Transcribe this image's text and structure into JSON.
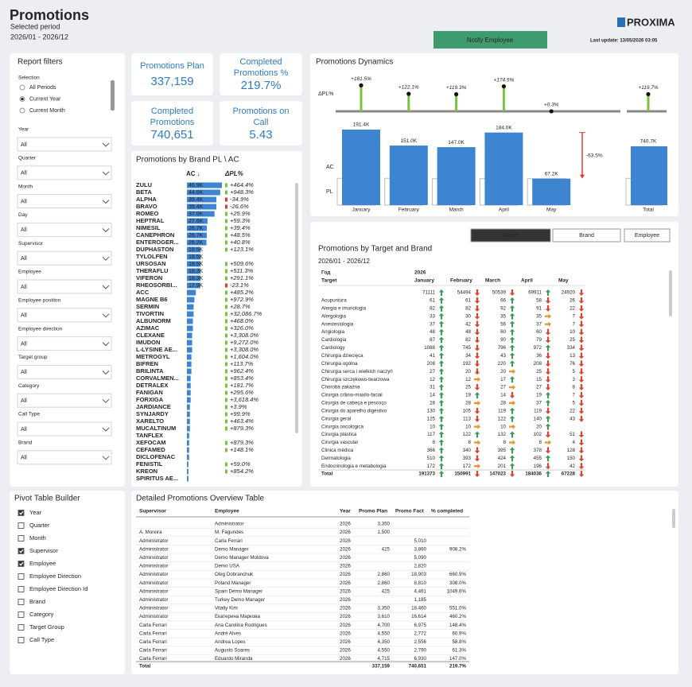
{
  "header": {
    "title": "Promotions",
    "period_label": "Selected period",
    "period": "2026/01 - 2026/12",
    "logo": "PROXIMA",
    "button": "Notify Employee",
    "last_update": "Last update: 13/05/2026 03:05"
  },
  "filters": {
    "title": "Report filters",
    "selection_label": "Selection",
    "options": [
      {
        "label": "All Periods",
        "selected": false
      },
      {
        "label": "Current Year",
        "selected": true
      },
      {
        "label": "Current Month",
        "selected": false
      }
    ],
    "fields": [
      {
        "label": "Year",
        "value": "All"
      },
      {
        "label": "Quarter",
        "value": "All"
      },
      {
        "label": "Month",
        "value": "All"
      },
      {
        "label": "Day",
        "value": "All"
      },
      {
        "label": "Supervisor",
        "value": "All"
      },
      {
        "label": "Employee",
        "value": "All"
      },
      {
        "label": "Employee position",
        "value": "All"
      },
      {
        "label": "Employee direction",
        "value": "All"
      },
      {
        "label": "Target group",
        "value": "All"
      },
      {
        "label": "Category",
        "value": "All"
      },
      {
        "label": "Call Type",
        "value": "All"
      },
      {
        "label": "Brand",
        "value": "All"
      }
    ]
  },
  "kpis": [
    {
      "label": "Promotions Plan",
      "value": "337,159"
    },
    {
      "label": "Completed Promotions %",
      "value": "219.7%"
    },
    {
      "label": "Completed Promotions",
      "value": "740,651"
    },
    {
      "label": "Promotions on Call",
      "value": "5.43"
    }
  ],
  "brand_chart": {
    "title": "Promotions by Brand PL \\ AC",
    "ac_header": "AC ↓",
    "delta_header": "ΔPL%",
    "color": "#3d85d1",
    "brands": [
      "ZULU",
      "BETA",
      "ALPHA",
      "BRAVO",
      "ROMEO",
      "HEPTRAL",
      "NIMESIL",
      "CANEPHRON",
      "ENTEROGER...",
      "DUPHASTON",
      "TYLOLFEN",
      "URSOSAN",
      "THERAFLU",
      "VIFERON",
      "RHEOSORBI...",
      "ACC",
      "MAGNE B6",
      "SERMIN",
      "TIVORTIN",
      "ALBUNORM",
      "AZIMAC",
      "CLEXANE",
      "IMUDON",
      "L-LYSINE AE...",
      "METROGYL",
      "BIFREN",
      "BRILINTA",
      "CORVALMEN...",
      "DETRALEX",
      "FANIGAN",
      "FORXIGA",
      "JARDIANCE",
      "SYNJARDY",
      "XARELTO",
      "MUCALTINUM",
      "TANFLEX",
      "XEFOCAM",
      "CEFAMED",
      "DICLOFENAC",
      "FENISTIL",
      "KREON",
      "SPIRITUS AE..."
    ],
    "values": [
      46900,
      44600,
      39400,
      39400,
      37000,
      27600,
      26700,
      26700,
      26200,
      18500,
      18500,
      18500,
      18300,
      18300,
      17900,
      12000,
      10000,
      9000,
      9000,
      8000,
      8000,
      7000,
      7000,
      7000,
      6000,
      6000,
      6000,
      5000,
      5000,
      5000,
      5000,
      4000,
      4000,
      4000,
      4000,
      3000,
      3000,
      3000,
      3000,
      2000,
      2000,
      2000
    ],
    "value_labels": [
      "46.9K",
      "44.6K",
      "39.4K",
      "39.4K",
      "37.0K",
      "27.6K",
      "26.7K",
      "26.7K",
      "26.2K",
      "18.5K",
      "18.5K",
      "18.5K",
      "18.3K",
      "18.3K",
      "17.9K",
      null,
      null,
      null,
      null,
      null,
      null,
      null,
      null,
      null,
      null,
      null,
      null,
      null,
      null,
      null,
      null,
      null,
      null,
      null,
      null,
      null,
      null,
      null,
      null,
      null,
      null,
      null
    ],
    "deltas": [
      "+464.4%",
      "+948.3%",
      "-34.9%",
      "-26.6%",
      "+25.9%",
      "+59.3%",
      "+39.4%",
      "+48.5%",
      "+40.8%",
      "+123.1%",
      null,
      "+509.6%",
      "+511.3%",
      "+291.1%",
      "-23.1%",
      "+485.2%",
      "+972.9%",
      "+28.7%",
      "+32,086.7%",
      "+468.0%",
      "+326.0%",
      "+3,308.0%",
      "+9,272.0%",
      "+3,308.0%",
      "+1,604.0%",
      "+113.7%",
      "+962.4%",
      "+853.4%",
      "+181.7%",
      "+295.6%",
      "+3,618.4%",
      "+3.9%",
      "+99.9%",
      "+463.4%",
      "+879.3%",
      null,
      "+879.3%",
      "+148.1%",
      null,
      "+59.0%",
      "+854.2%",
      null
    ]
  },
  "dynamics": {
    "title": "Promotions Dynamics",
    "delta_axis_label": "ΔPL%",
    "ac_label": "AC",
    "pl_label": "PL",
    "ac_color": "#3d85d1",
    "delta_color": "#7cc142",
    "categories": [
      "January",
      "February",
      "March",
      "April",
      "May"
    ],
    "ac": [
      191400,
      151000,
      147000,
      184000,
      67200
    ],
    "ac_labels": [
      "191.4K",
      "151.0K",
      "147.0K",
      "184.0K",
      "67.2K"
    ],
    "pl": [
      68000,
      68000,
      67000,
      67000,
      67000
    ],
    "delta": [
      181.5,
      122.1,
      119.3,
      174.5,
      0.3
    ],
    "delta_labels": [
      "+181.5%",
      "+122.1%",
      "+119.3%",
      "+174.5%",
      "+0.3%"
    ],
    "change_label": "-63.5%",
    "total": {
      "label": "Total",
      "ac": 740700,
      "ac_label": "740.7K",
      "pl": 337159,
      "delta": 119.7,
      "delta_label": "+119.7%"
    }
  },
  "target_table": {
    "tabs": [
      {
        "label": "Target",
        "active": true
      },
      {
        "label": "Brand",
        "active": false
      },
      {
        "label": "Employee",
        "active": false
      }
    ],
    "title": "Promotions by Target and Brand",
    "period": "2026/01 - 2026/12",
    "year_header": "Год",
    "year": "2026",
    "target_header": "Target",
    "months": [
      "January",
      "February",
      "March",
      "April",
      "May"
    ],
    "rows": [
      {
        "target": null,
        "values": [
          71111,
          54494,
          50539,
          69911,
          24920
        ],
        "arrows": [
          "up",
          "down",
          "down",
          "up",
          "down"
        ]
      },
      {
        "target": "Acupuntura",
        "values": [
          61,
          61,
          66,
          58,
          26
        ],
        "arrows": [
          "up",
          "down",
          "up",
          "down",
          "down"
        ]
      },
      {
        "target": "Alergia e imunologia",
        "values": [
          82,
          82,
          92,
          91,
          22
        ],
        "arrows": [
          "up",
          "down",
          "up",
          "down",
          "down"
        ]
      },
      {
        "target": "Alergologia",
        "values": [
          33,
          30,
          35,
          35,
          7
        ],
        "arrows": [
          "up",
          "down",
          "up",
          "right",
          "down"
        ]
      },
      {
        "target": "Anestesiologia",
        "values": [
          37,
          42,
          56,
          37,
          7
        ],
        "arrows": [
          "up",
          "down",
          "up",
          "right",
          "down"
        ]
      },
      {
        "target": "Angiologia",
        "values": [
          48,
          48,
          60,
          60,
          10
        ],
        "arrows": [
          "up",
          "down",
          "up",
          "down",
          "down"
        ]
      },
      {
        "target": "Cardiologia",
        "values": [
          87,
          82,
          90,
          79,
          25
        ],
        "arrows": [
          "up",
          "down",
          "up",
          "down",
          "down"
        ]
      },
      {
        "target": "Cardiology",
        "values": [
          1088,
          745,
          796,
          972,
          334
        ],
        "arrows": [
          "up",
          "down",
          "up",
          "up",
          "down"
        ]
      },
      {
        "target": "Chirurgia dziecięca",
        "values": [
          41,
          34,
          43,
          36,
          13
        ],
        "arrows": [
          "up",
          "down",
          "up",
          "down",
          "down"
        ]
      },
      {
        "target": "Chirurgia ogólna",
        "values": [
          208,
          192,
          220,
          208,
          76
        ],
        "arrows": [
          "up",
          "down",
          "up",
          "down",
          "down"
        ]
      },
      {
        "target": "Chirurgia serca i wielkich naczyń",
        "values": [
          27,
          20,
          20,
          25,
          5
        ],
        "arrows": [
          "up",
          "down",
          "right",
          "down",
          "down"
        ]
      },
      {
        "target": "Chirurgia szczękowo-twarzowa",
        "values": [
          12,
          12,
          17,
          15,
          3
        ],
        "arrows": [
          "up",
          "right",
          "up",
          "down",
          "down"
        ]
      },
      {
        "target": "Choroba zakaźna",
        "values": [
          31,
          25,
          27,
          27,
          8
        ],
        "arrows": [
          "up",
          "down",
          "right",
          "down",
          "down"
        ]
      },
      {
        "target": "Cirurgia crânio-maxilo-facial",
        "values": [
          14,
          19,
          14,
          19,
          7
        ],
        "arrows": [
          "up",
          "up",
          "down",
          "up",
          "down"
        ]
      },
      {
        "target": "Cirurgia de cabeça e pescoço",
        "values": [
          28,
          28,
          28,
          37,
          5
        ],
        "arrows": [
          "up",
          "right",
          "right",
          "up",
          "down"
        ]
      },
      {
        "target": "Cirurgia do aparelho digestivo",
        "values": [
          130,
          105,
          119,
          119,
          22
        ],
        "arrows": [
          "up",
          "down",
          "up",
          "down",
          "down"
        ]
      },
      {
        "target": "Cirurgia geral",
        "values": [
          125,
          113,
          122,
          140,
          43
        ],
        "arrows": [
          "up",
          "down",
          "up",
          "up",
          "down"
        ]
      },
      {
        "target": "Cirurgia oncológica",
        "values": [
          10,
          10,
          10,
          20,
          null
        ],
        "arrows": [
          "up",
          "right",
          "right",
          "up",
          null
        ]
      },
      {
        "target": "Cirurgia plástica",
        "values": [
          117,
          122,
          132,
          102,
          51
        ],
        "arrows": [
          "up",
          "up",
          "up",
          "down",
          "down"
        ]
      },
      {
        "target": "Cirurgia vascular",
        "values": [
          8,
          8,
          8,
          8,
          4
        ],
        "arrows": [
          "up",
          "right",
          "right",
          "right",
          "down"
        ]
      },
      {
        "target": "Clinica médica",
        "values": [
          366,
          340,
          395,
          378,
          128
        ],
        "arrows": [
          "up",
          "down",
          "up",
          "down",
          "down"
        ]
      },
      {
        "target": "Dermatologia",
        "values": [
          510,
          393,
          424,
          455,
          150
        ],
        "arrows": [
          "up",
          "down",
          "up",
          "up",
          "down"
        ]
      },
      {
        "target": "Endocrinologia e metabologia",
        "values": [
          172,
          172,
          201,
          196,
          42
        ],
        "arrows": [
          "up",
          "right",
          "up",
          "down",
          "down"
        ]
      }
    ],
    "total": {
      "target": "Total",
      "values": [
        191373,
        150991,
        147023,
        184036,
        67228
      ],
      "arrows": [
        "up",
        "down",
        "down",
        "up",
        "down"
      ]
    }
  },
  "pivot_builder": {
    "title": "Pivot Table Builder",
    "items": [
      {
        "label": "Year",
        "checked": true
      },
      {
        "label": "Quarter",
        "checked": false
      },
      {
        "label": "Month",
        "checked": false
      },
      {
        "label": "Supervisor",
        "checked": true
      },
      {
        "label": "Employee",
        "checked": true
      },
      {
        "label": "Employee Direction",
        "checked": false
      },
      {
        "label": "Employee Direction Id",
        "checked": false
      },
      {
        "label": "Brand",
        "checked": false
      },
      {
        "label": "Category",
        "checked": false
      },
      {
        "label": "Target Group",
        "checked": false
      },
      {
        "label": "Call Type",
        "checked": false
      }
    ]
  },
  "detail_table": {
    "title": "Detailed Promotions Overview Table",
    "columns": [
      "Supervisor",
      "Employee",
      "Year",
      "Promo Plan",
      "Promo Fact",
      "% completed"
    ],
    "rows": [
      [
        null,
        "Administrator",
        "2026",
        "3,350",
        null,
        null
      ],
      [
        "A. Moreira",
        "M. Fagundes",
        "2026",
        "1,500",
        null,
        null
      ],
      [
        "Administrator",
        "Carla Ferrari",
        "2026",
        null,
        "5,010",
        null
      ],
      [
        "Administrator",
        "Demo Manager",
        "2026",
        "425",
        "3,860",
        "908.2%"
      ],
      [
        "Administrator",
        "Demo Manager Moldova",
        "2026",
        null,
        "5,090",
        null
      ],
      [
        "Administrator",
        "Demo USA",
        "2026",
        null,
        "2,820",
        null
      ],
      [
        "Administrator",
        "Oleg Dobranchuk",
        "2026",
        "2,860",
        "18,903",
        "660.9%"
      ],
      [
        "Administrator",
        "Poland Manager",
        "2026",
        "2,860",
        "8,810",
        "308.0%"
      ],
      [
        "Administrator",
        "Spain Demo Manager",
        "2026",
        "425",
        "4,461",
        "1049.6%"
      ],
      [
        "Administrator",
        "Turkey Demo Manager",
        "2026",
        null,
        "1,185",
        null
      ],
      [
        "Administrator",
        "Vitaliy Kim",
        "2026",
        "3,350",
        "18,460",
        "551.0%"
      ],
      [
        "Administrator",
        "Екатерина Маркова",
        "2026",
        "3,610",
        "16,614",
        "460.2%"
      ],
      [
        "Carla Ferrari",
        "Ana Carolina Rodrigues",
        "2026",
        "4,700",
        "6,975",
        "148.4%"
      ],
      [
        "Carla Ferrari",
        "André Alves",
        "2026",
        "4,550",
        "2,772",
        "60.9%"
      ],
      [
        "Carla Ferrari",
        "Andrea Lopes",
        "2026",
        "4,350",
        "2,556",
        "58.8%"
      ],
      [
        "Carla Ferrari",
        "Augusto Soares",
        "2026",
        "4,550",
        "2,790",
        "61.3%"
      ],
      [
        "Carla Ferrari",
        "Eduardo Miranda",
        "2026",
        "4,715",
        "6,930",
        "147.0%"
      ]
    ],
    "total": [
      "Total",
      null,
      null,
      "337,159",
      "740,651",
      "219.7%"
    ]
  }
}
